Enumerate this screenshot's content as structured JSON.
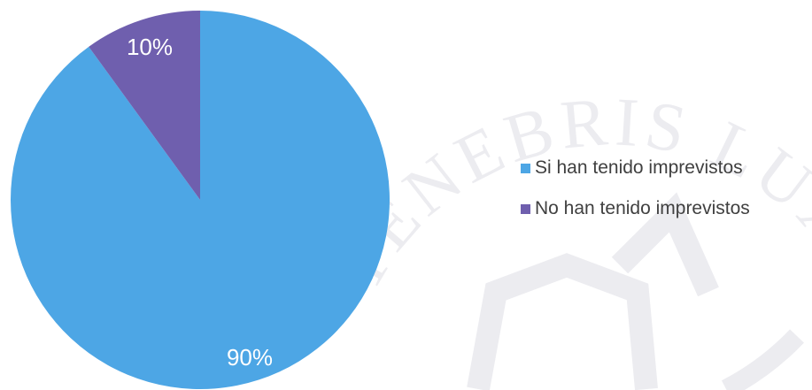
{
  "chart_data": {
    "type": "pie",
    "categories": [
      "Si han tenido imprevistos",
      "No han tenido imprevistos"
    ],
    "values": [
      90,
      10
    ],
    "data_labels": [
      "90%",
      "10%"
    ],
    "colors": [
      "#4da6e5",
      "#6f5fae"
    ],
    "start_angle_deg": 0,
    "direction": "clockwise",
    "legend_position": "right",
    "title": ""
  },
  "watermark": {
    "text": "TENEBRIS LUX",
    "color": "#e9e9ee"
  }
}
